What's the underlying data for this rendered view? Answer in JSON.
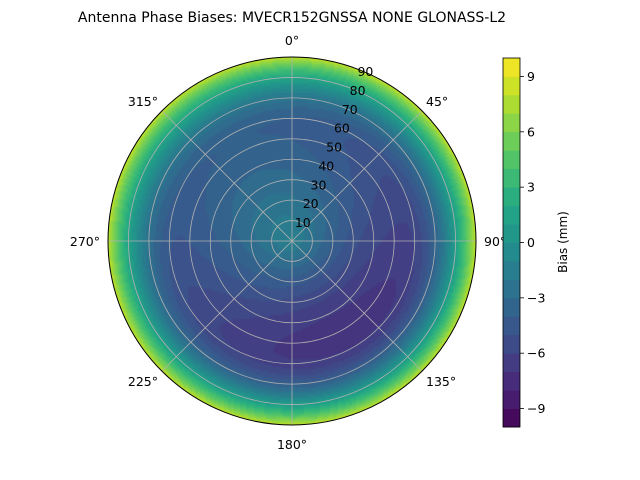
{
  "chart_data": {
    "type": "polar-contour",
    "title": "Antenna Phase Biases: MVECR152GNSSA   NONE GLONASS-L2",
    "azimuth_tick_labels": [
      "0°",
      "45°",
      "90°",
      "135°",
      "180°",
      "225°",
      "270°",
      "315°"
    ],
    "radial_tick_labels": [
      "10",
      "20",
      "30",
      "40",
      "50",
      "60",
      "70",
      "80",
      "90"
    ],
    "radial_range": [
      0,
      90
    ],
    "grid": true,
    "colorbar": {
      "label": "Bias (mm)",
      "range": [
        -10,
        10
      ],
      "tick_labels": [
        "−9",
        "−6",
        "−3",
        "0",
        "3",
        "6",
        "9"
      ],
      "colormap": "viridis"
    },
    "field_description": "Bias around -1 mm near zenith, dropping to about -5 mm in a broad ring over 30-60 degrees zenith angle, deepest toward azimuth 180-225, then rising to about +7 mm at the 90 degree edge."
  }
}
